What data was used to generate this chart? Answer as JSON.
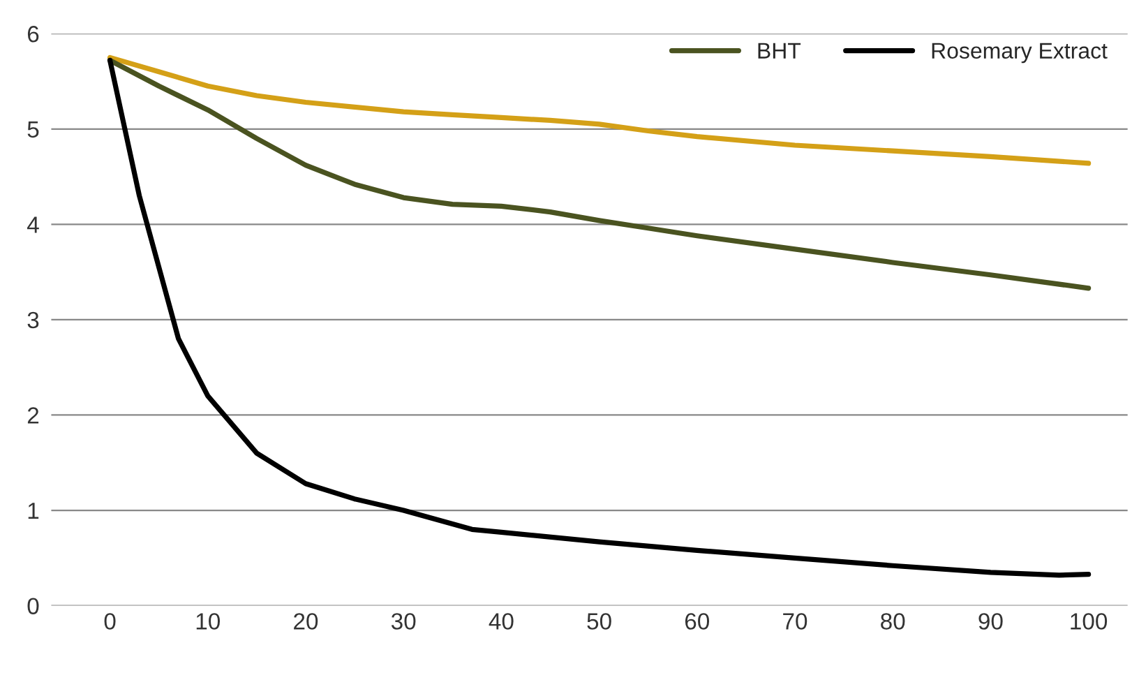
{
  "chart_data": {
    "type": "line",
    "x": [
      0,
      5,
      10,
      15,
      20,
      25,
      30,
      35,
      40,
      45,
      50,
      55,
      60,
      70,
      80,
      90,
      100
    ],
    "series": [
      {
        "color": "#d4a017",
        "values": [
          5.75,
          5.6,
          5.45,
          5.35,
          5.28,
          5.23,
          5.18,
          5.15,
          5.12,
          5.09,
          5.05,
          4.98,
          4.92,
          4.83,
          4.77,
          4.71,
          4.64
        ]
      },
      {
        "name": "BHT",
        "color": "#4a5320",
        "values": [
          5.72,
          5.45,
          5.2,
          4.9,
          4.62,
          4.42,
          4.28,
          4.21,
          4.19,
          4.13,
          4.04,
          3.96,
          3.88,
          3.74,
          3.6,
          3.47,
          3.33
        ]
      },
      {
        "name": "Rosemary Extract",
        "color": "#000000",
        "x": [
          0,
          3,
          7,
          10,
          15,
          20,
          25,
          30,
          37,
          40,
          50,
          60,
          70,
          80,
          90,
          97,
          100
        ],
        "values": [
          5.72,
          4.3,
          2.8,
          2.2,
          1.6,
          1.28,
          1.12,
          1.0,
          0.8,
          0.77,
          0.67,
          0.58,
          0.5,
          0.42,
          0.35,
          0.32,
          0.33
        ]
      }
    ],
    "xlim": [
      -6,
      104
    ],
    "xticks": [
      0,
      10,
      20,
      30,
      40,
      50,
      60,
      70,
      80,
      90,
      100
    ],
    "ylim": [
      0,
      6
    ],
    "yticks": [
      0,
      1,
      2,
      3,
      4,
      5,
      6
    ],
    "grid": "y",
    "legend": "top right",
    "line_style": "solid",
    "marker": "none"
  }
}
